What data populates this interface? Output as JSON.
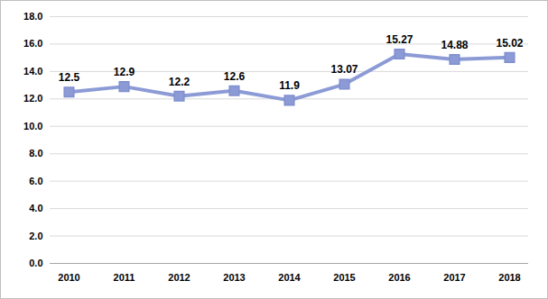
{
  "chart_data": {
    "type": "line",
    "categories": [
      "2010",
      "2011",
      "2012",
      "2013",
      "2014",
      "2015",
      "2016",
      "2017",
      "2018"
    ],
    "values": [
      12.5,
      12.9,
      12.2,
      12.6,
      11.9,
      13.07,
      15.27,
      14.88,
      15.02
    ],
    "color": "#8c9bd6",
    "marker": "square",
    "line_style": "solid",
    "ylim": [
      0,
      18
    ],
    "yticks": [
      {
        "value": 0,
        "label": "0.0"
      },
      {
        "value": 2,
        "label": "2.0"
      },
      {
        "value": 4,
        "label": "4.0"
      },
      {
        "value": 6,
        "label": "6.0"
      },
      {
        "value": 8,
        "label": "8.0"
      },
      {
        "value": 10,
        "label": "10.0"
      },
      {
        "value": 12,
        "label": "12.0"
      },
      {
        "value": 14,
        "label": "14.0"
      },
      {
        "value": 16,
        "label": "16.0"
      },
      {
        "value": 18,
        "label": "18.0"
      }
    ],
    "grid": true,
    "data_labels": true
  }
}
